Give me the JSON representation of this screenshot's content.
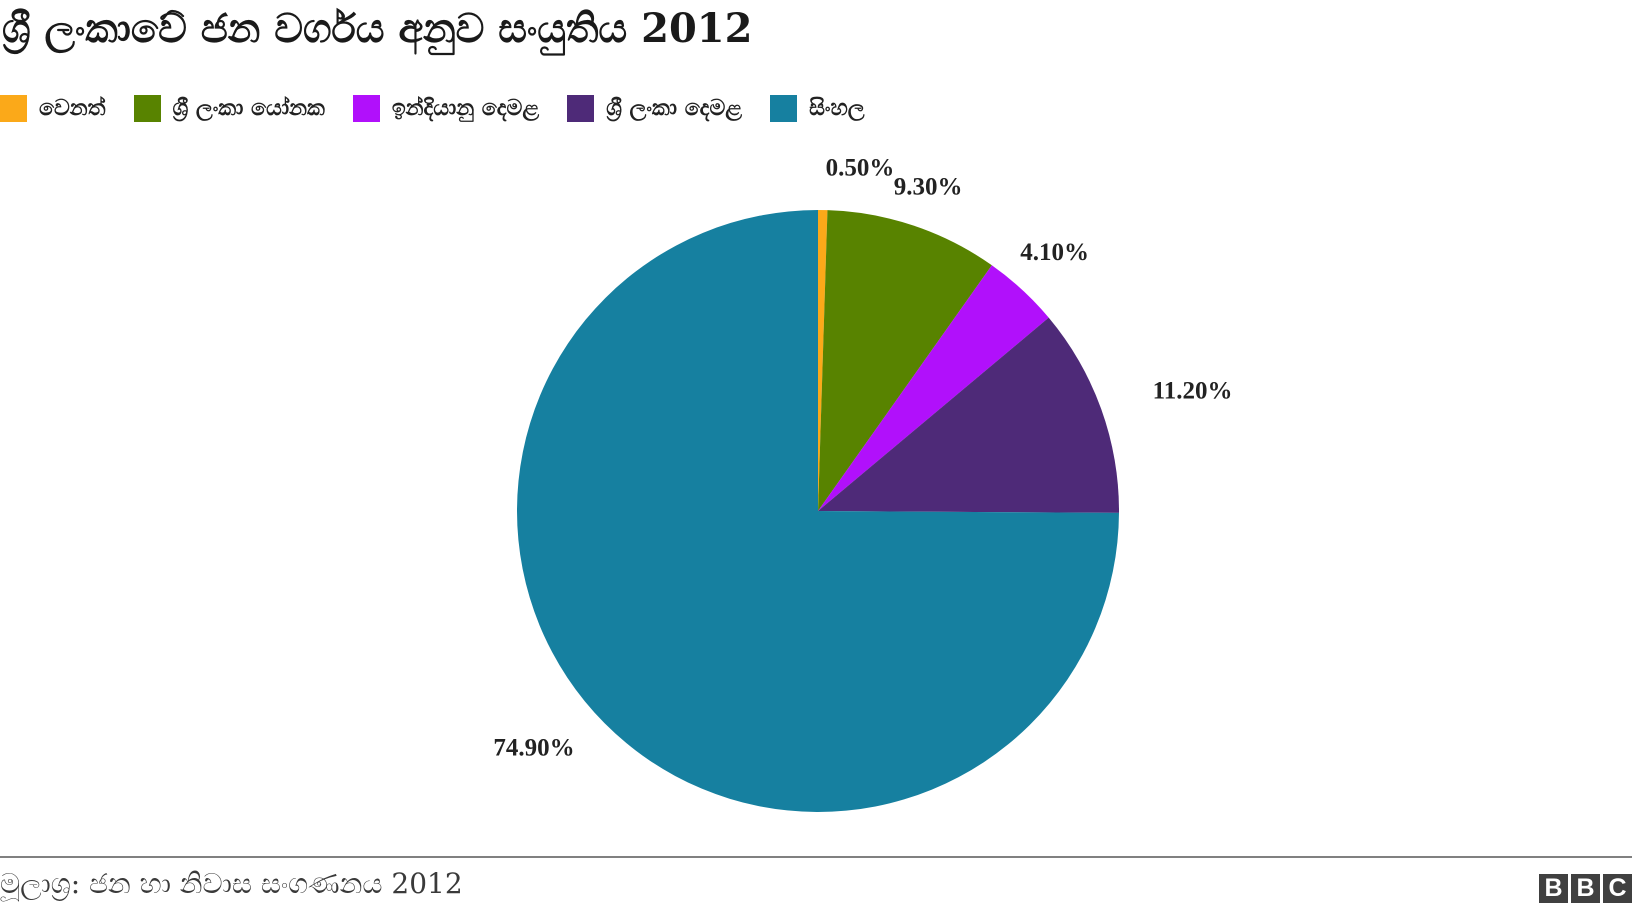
{
  "header": {
    "title": "ශ්‍රී ලංකාවේ ජන වර්ගය අනුව සංයුතිය 2012"
  },
  "chart_data": {
    "type": "pie",
    "title": "ශ්‍රී ලංකාවේ ජන වර්ගය අනුව සංයුතිය 2012",
    "legend_position": "top-left",
    "slices": [
      {
        "name": "වෙනත්",
        "value": 0.5,
        "label": "0.50%",
        "color": "#fba919"
      },
      {
        "name": "ශ්‍රී ලංකා යෝනක",
        "value": 9.3,
        "label": "9.30%",
        "color": "#588300"
      },
      {
        "name": "ඉන්දියානු දෙමළ",
        "value": 4.1,
        "label": "4.10%",
        "color": "#b110fb"
      },
      {
        "name": "ශ්‍රී ලංකා දෙමළ",
        "value": 11.2,
        "label": "11.20%",
        "color": "#4e2a78"
      },
      {
        "name": "සිංහල",
        "value": 74.9,
        "label": "74.90%",
        "color": "#1680a0"
      }
    ]
  },
  "footer": {
    "source": "මූලාශ්‍ර: ජන හා නිවාස සංගණනය 2012",
    "logo_letters": [
      "B",
      "B",
      "C"
    ]
  }
}
